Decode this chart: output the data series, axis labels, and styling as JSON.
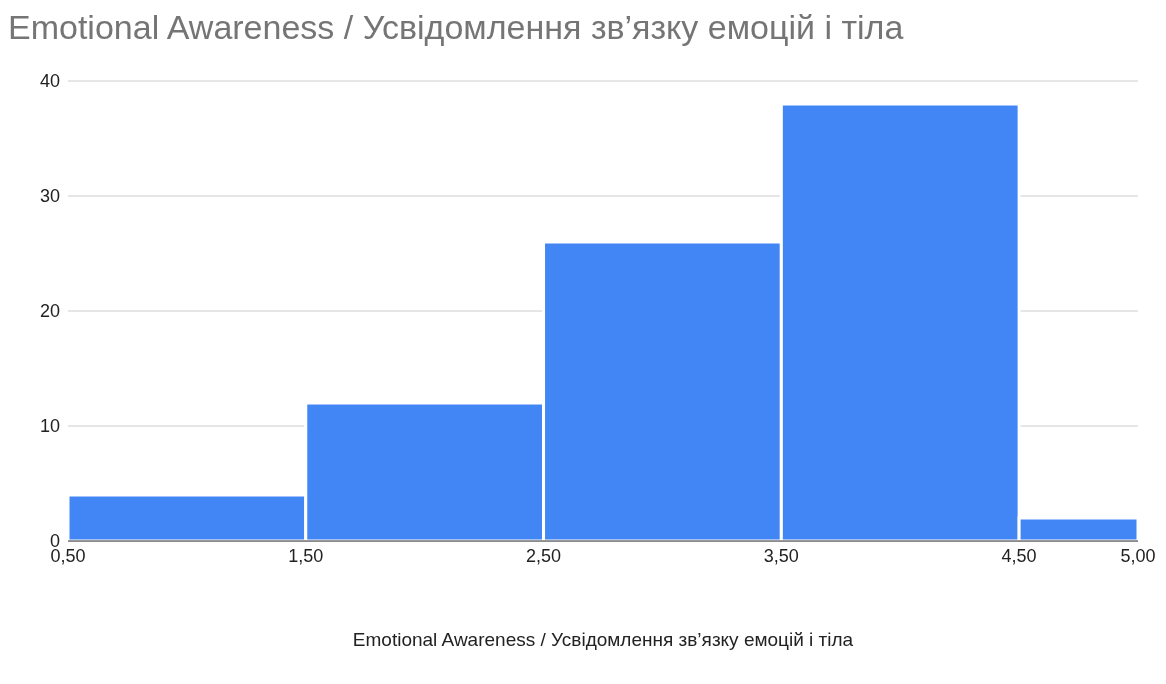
{
  "chart_data": {
    "type": "histogram",
    "title": "Emotional Awareness / Усвідомлення зв’язку емоцій і тіла",
    "xlabel": "Emotional Awareness / Усвідомлення зв’язку емоцій і тіла",
    "bins": [
      0.5,
      1.5,
      2.5,
      3.5,
      4.5,
      5.0
    ],
    "values": [
      4,
      12,
      26,
      38,
      2
    ],
    "color": "#4285f4",
    "xlim": [
      0.5,
      5.0
    ],
    "xticks": [
      {
        "value": 0.5,
        "label": "0,50"
      },
      {
        "value": 1.5,
        "label": "1,50"
      },
      {
        "value": 2.5,
        "label": "2,50"
      },
      {
        "value": 3.5,
        "label": "3,50"
      },
      {
        "value": 4.5,
        "label": "4,50"
      },
      {
        "value": 5.0,
        "label": "5,00"
      }
    ],
    "ylim": [
      0,
      40
    ],
    "yticks": [
      0,
      10,
      20,
      30,
      40
    ],
    "grid": "y"
  }
}
